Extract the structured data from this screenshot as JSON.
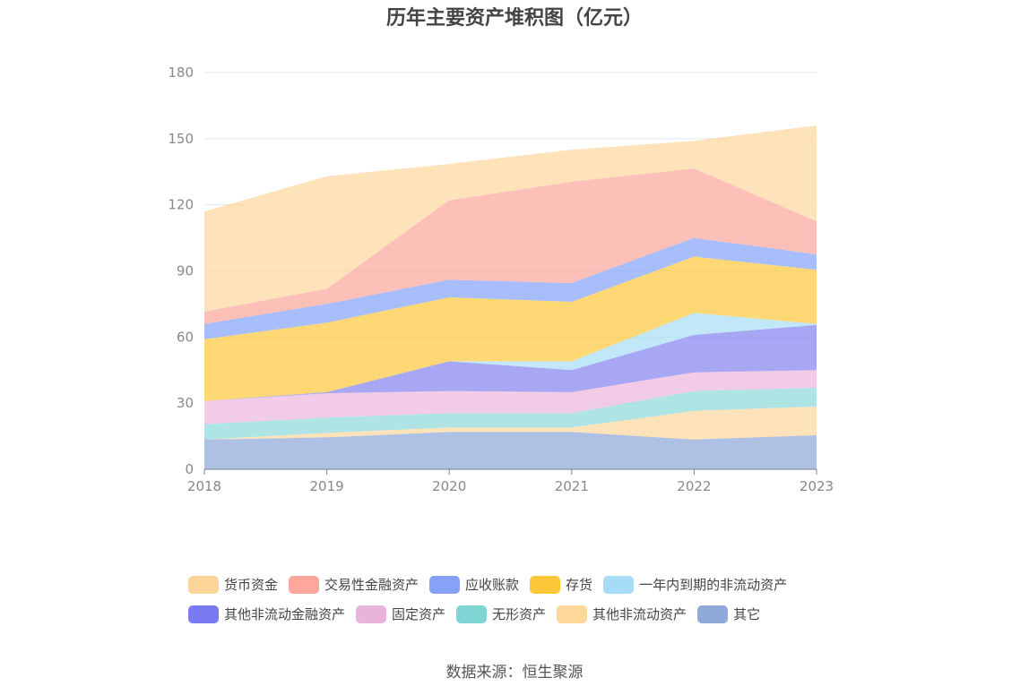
{
  "chart_data": {
    "type": "area",
    "stacked": true,
    "title": "历年主要资产堆积图（亿元）",
    "x": [
      "2018",
      "2019",
      "2020",
      "2021",
      "2022",
      "2023"
    ],
    "ylim": [
      0,
      180
    ],
    "yticks": [
      "0",
      "30",
      "60",
      "90",
      "120",
      "150",
      "180"
    ],
    "grid": true,
    "legend_position": "bottom",
    "series": [
      {
        "name": "其它",
        "values": [
          13.5,
          14.5,
          17.0,
          17.0,
          13.5,
          15.5
        ],
        "color": "#8fa9d9",
        "legend_color": "#8fa9d9"
      },
      {
        "name": "其他非流动资产",
        "values": [
          0.0,
          2.0,
          2.0,
          2.0,
          13.0,
          13.0
        ],
        "color": "#fcd7a0",
        "legend_color": "#ffd79a"
      },
      {
        "name": "无形资产",
        "values": [
          7.0,
          7.0,
          6.5,
          6.5,
          9.0,
          8.5
        ],
        "color": "#8fd9d9",
        "legend_color": "#7fd4d4"
      },
      {
        "name": "固定资产",
        "values": [
          10.5,
          11.0,
          10.0,
          9.5,
          8.5,
          8.0
        ],
        "color": "#edb8dc",
        "legend_color": "#e8b4db"
      },
      {
        "name": "其他非流动金融资产",
        "values": [
          0.0,
          0.5,
          13.5,
          10.0,
          17.0,
          20.5
        ],
        "color": "#8585f0",
        "legend_color": "#7a7bf0"
      },
      {
        "name": "一年内到期的非流动资产",
        "values": [
          0.0,
          0.0,
          0.0,
          4.0,
          10.0,
          0.5
        ],
        "color": "#a9def7",
        "legend_color": "#a6dcf8"
      },
      {
        "name": "存货",
        "values": [
          28.0,
          31.5,
          29.0,
          27.0,
          25.5,
          24.5
        ],
        "color": "#fdc93f",
        "legend_color": "#fdc73a"
      },
      {
        "name": "应收账款",
        "values": [
          7.0,
          8.5,
          8.0,
          8.5,
          8.5,
          7.0
        ],
        "color": "#87a4fa",
        "legend_color": "#85a2f8"
      },
      {
        "name": "交易性金融资产",
        "values": [
          5.5,
          7.0,
          36.0,
          46.0,
          31.5,
          15.0
        ],
        "color": "#fca89e",
        "legend_color": "#fca69c"
      },
      {
        "name": "货币资金",
        "values": [
          45.5,
          51.0,
          16.5,
          14.5,
          12.5,
          43.5
        ],
        "color": "#fdd79e",
        "legend_color": "#fdd599"
      }
    ]
  },
  "legend_order": [
    [
      "货币资金",
      "交易性金融资产",
      "应收账款",
      "存货",
      "一年内到期的非流动资产"
    ],
    [
      "其他非流动金融资产",
      "固定资产",
      "无形资产",
      "其他非流动资产",
      "其它"
    ]
  ],
  "source": "数据来源：恒生聚源"
}
